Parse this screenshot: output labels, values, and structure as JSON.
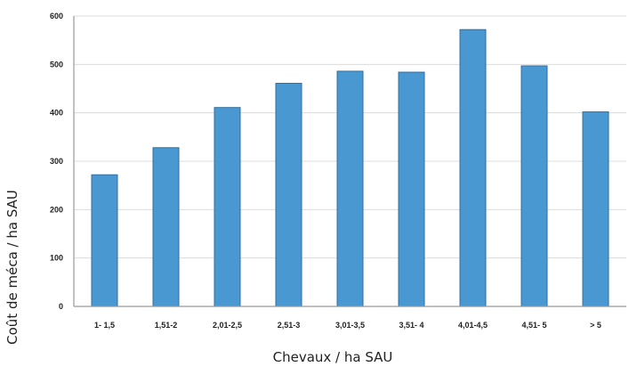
{
  "chart_data": {
    "type": "bar",
    "title": "",
    "xlabel": "Chevaux / ha SAU",
    "ylabel": "Coût de méca / ha SAU",
    "categories": [
      "1- 1,5",
      "1,51-2",
      "2,01-2,5",
      "2,51-3",
      "3,01-3,5",
      "3,51- 4",
      "4,01-4,5",
      "4,51- 5",
      "> 5"
    ],
    "values": [
      272,
      328,
      411,
      461,
      486,
      484,
      572,
      497,
      402
    ],
    "ylim": [
      0,
      600
    ],
    "yticks": [
      0,
      100,
      200,
      300,
      400,
      500,
      600
    ],
    "grid": true,
    "legend": "none",
    "bar_color": "#4a98d2"
  }
}
